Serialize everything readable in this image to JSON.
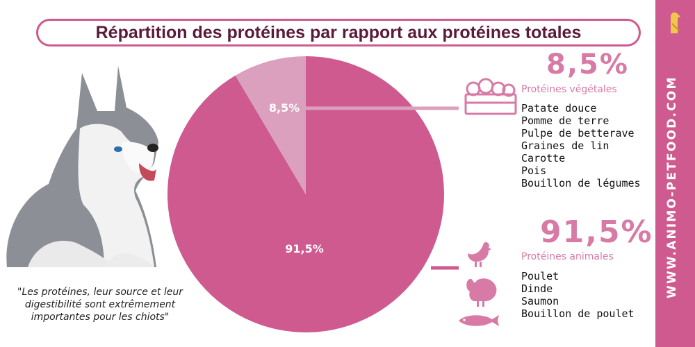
{
  "title": "Répartition des protéines par rapport aux protéines totales",
  "brand": "WWW.ANIMO-PETFOOD.COM",
  "quote": "\"Les protéines, leur source et leur digestibilité sont extrêmement importantes pour les chiots\"",
  "colors": {
    "animal": "#cf5a8f",
    "vegetal": "#dca0bf",
    "accent": "#d77ba6"
  },
  "vegetal": {
    "pct": "8,5%",
    "label": "Protéines végétales",
    "icon": "vegetable-crate-icon",
    "items": [
      "Patate douce",
      "Pomme de terre",
      "Pulpe de betterave",
      "Graines de lin",
      "Carotte",
      "Pois",
      "Bouillon de légumes"
    ]
  },
  "animal": {
    "pct": "91,5%",
    "label": "Protéines animales",
    "icons": [
      "chicken-icon",
      "turkey-icon",
      "fish-icon"
    ],
    "items": [
      "Poulet",
      "Dinde",
      "Saumon",
      "Bouillon de poulet"
    ]
  },
  "chart_data": {
    "type": "pie",
    "slices": [
      {
        "label": "8,5%",
        "value": 8.5,
        "color": "#dca0bf"
      },
      {
        "label": "91,5%",
        "value": 91.5,
        "color": "#cf5a8f"
      }
    ]
  }
}
